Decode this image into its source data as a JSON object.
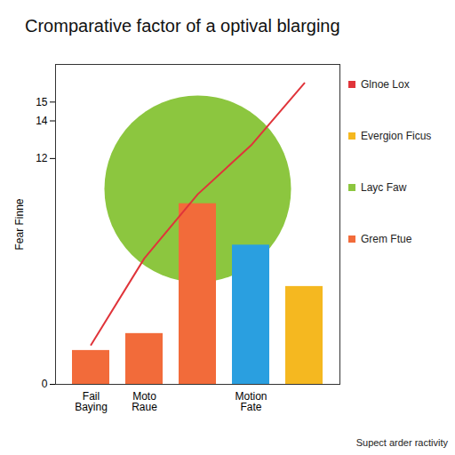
{
  "chart_data": {
    "type": "bar",
    "title": "Cromparative factor of a optival blarging",
    "y_label": "Fear Finne",
    "caption": "Supect arder ractivity",
    "categories": [
      "Fail\nBaying",
      "Moto\nRaue",
      null,
      "Motion\nFate",
      null
    ],
    "values": [
      null,
      null,
      null,
      7.4,
      null
    ],
    "color": "#2a9fe0",
    "series": [
      {
        "name": "Glnoe Lox",
        "type": "line",
        "color": "#e0343a",
        "values": [
          2.1,
          6.7,
          10.1,
          12.7,
          16
        ]
      },
      {
        "name": "Evergion Ficus",
        "type": "bar",
        "color": "#f5b820",
        "values": [
          null,
          null,
          null,
          null,
          5.2
        ]
      },
      {
        "name": "Layc Faw",
        "type": "bar",
        "color": "#8cc63f",
        "values": [
          null,
          null,
          null,
          null,
          null
        ]
      },
      {
        "name": "Grem Ftue",
        "type": "bar",
        "color": "#f26b3a",
        "values": [
          1.8,
          2.7,
          9.6,
          null,
          null
        ]
      }
    ],
    "ylim": [
      0,
      17
    ],
    "yticks": [
      0,
      12,
      14,
      15
    ],
    "grid": false,
    "legend": "right"
  }
}
